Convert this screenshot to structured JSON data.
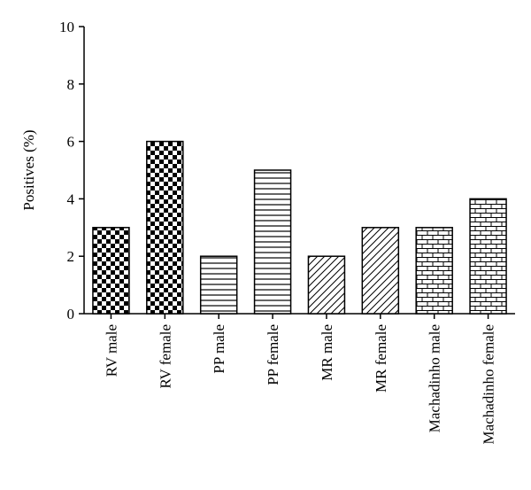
{
  "chart_data": {
    "type": "bar",
    "ylabel": "Positives (%)",
    "xlabel": "",
    "ylim": [
      0,
      10
    ],
    "yticks": [
      "0",
      "2",
      "4",
      "6",
      "8",
      "10"
    ],
    "grid": false,
    "categories": [
      "RV male",
      "RV female",
      "PP male",
      "PP female",
      "MR male",
      "MR female",
      "Machadinho male",
      "Machadinho female"
    ],
    "values": [
      3,
      6,
      2,
      5,
      2,
      3,
      3,
      4
    ],
    "patterns": [
      "checker",
      "checker",
      "horizontal-lines",
      "horizontal-lines",
      "diagonal-lines",
      "diagonal-lines",
      "brick",
      "brick"
    ]
  }
}
